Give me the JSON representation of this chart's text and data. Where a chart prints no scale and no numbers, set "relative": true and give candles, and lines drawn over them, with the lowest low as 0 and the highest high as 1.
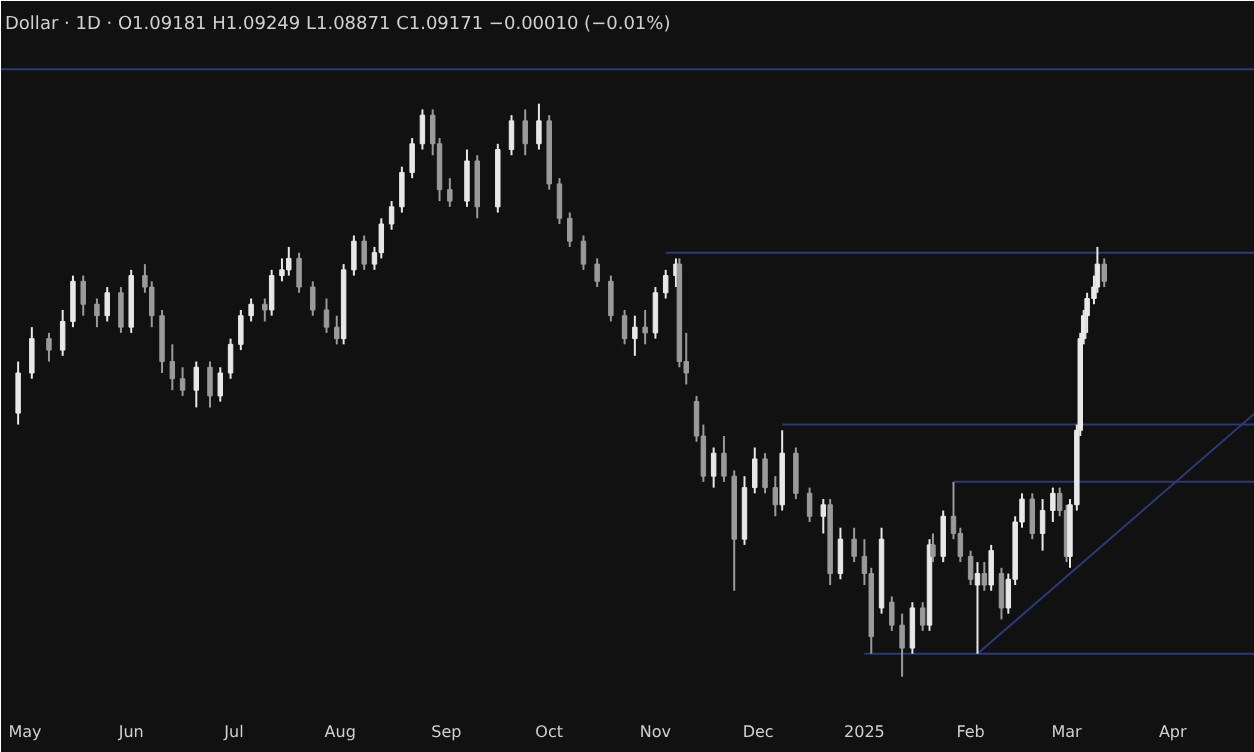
{
  "chart_data": {
    "type": "candlestick",
    "title": "Dollar · 1D · O1.09181 H1.09249 L1.08871 C1.09171 −0.00010 (−0.01%)",
    "relative": true,
    "x": [
      "2024-04-29",
      "2024-05-03",
      "2024-05-08",
      "2024-05-12",
      "2024-05-15",
      "2024-05-18",
      "2024-05-22",
      "2024-05-25",
      "2024-05-29",
      "2024-06-01",
      "2024-06-05",
      "2024-06-07",
      "2024-06-10",
      "2024-06-13",
      "2024-06-16",
      "2024-06-20",
      "2024-06-24",
      "2024-06-27",
      "2024-06-30",
      "2024-07-03",
      "2024-07-06",
      "2024-07-10",
      "2024-07-12",
      "2024-07-15",
      "2024-07-17",
      "2024-07-20",
      "2024-07-24",
      "2024-07-28",
      "2024-07-31",
      "2024-08-02",
      "2024-08-05",
      "2024-08-08",
      "2024-08-11",
      "2024-08-13",
      "2024-08-16",
      "2024-08-19",
      "2024-08-22",
      "2024-08-25",
      "2024-08-28",
      "2024-08-30",
      "2024-09-02",
      "2024-09-07",
      "2024-09-10",
      "2024-09-16",
      "2024-09-20",
      "2024-09-24",
      "2024-09-28",
      "2024-10-01",
      "2024-10-04",
      "2024-10-07",
      "2024-10-11",
      "2024-10-15",
      "2024-10-19",
      "2024-10-23",
      "2024-10-26",
      "2024-10-29",
      "2024-11-01",
      "2024-11-04",
      "2024-11-07",
      "2024-11-08",
      "2024-11-10",
      "2024-11-13",
      "2024-11-15",
      "2024-11-18",
      "2024-11-21",
      "2024-11-24",
      "2024-11-27",
      "2024-11-30",
      "2024-12-03",
      "2024-12-06",
      "2024-12-08",
      "2024-12-12",
      "2024-12-16",
      "2024-12-20",
      "2024-12-22",
      "2024-12-25",
      "2024-12-29",
      "2025-01-01",
      "2025-01-03",
      "2025-01-06",
      "2025-01-09",
      "2025-01-12",
      "2025-01-15",
      "2025-01-18",
      "2025-01-20",
      "2025-01-21",
      "2025-01-24",
      "2025-01-27",
      "2025-01-29",
      "2025-02-01",
      "2025-02-03",
      "2025-02-05",
      "2025-02-07",
      "2025-02-10",
      "2025-02-12",
      "2025-02-14",
      "2025-02-16",
      "2025-02-19",
      "2025-02-22",
      "2025-02-25",
      "2025-02-27",
      "2025-03-01",
      "2025-03-02",
      "2025-03-04",
      "2025-03-05",
      "2025-03-06",
      "2025-03-07",
      "2025-03-09",
      "2025-03-10",
      "2025-03-12"
    ],
    "ohlc": [
      [
        0.46,
        0.55,
        0.44,
        0.53
      ],
      [
        0.53,
        0.61,
        0.52,
        0.59
      ],
      [
        0.59,
        0.6,
        0.55,
        0.57
      ],
      [
        0.57,
        0.64,
        0.56,
        0.62
      ],
      [
        0.62,
        0.7,
        0.61,
        0.69
      ],
      [
        0.69,
        0.7,
        0.63,
        0.65
      ],
      [
        0.65,
        0.66,
        0.61,
        0.63
      ],
      [
        0.63,
        0.68,
        0.62,
        0.67
      ],
      [
        0.67,
        0.68,
        0.6,
        0.61
      ],
      [
        0.61,
        0.71,
        0.6,
        0.7
      ],
      [
        0.7,
        0.72,
        0.67,
        0.68
      ],
      [
        0.68,
        0.69,
        0.61,
        0.63
      ],
      [
        0.63,
        0.64,
        0.53,
        0.55
      ],
      [
        0.55,
        0.58,
        0.5,
        0.52
      ],
      [
        0.52,
        0.54,
        0.49,
        0.5
      ],
      [
        0.5,
        0.55,
        0.47,
        0.54
      ],
      [
        0.54,
        0.55,
        0.47,
        0.49
      ],
      [
        0.49,
        0.54,
        0.48,
        0.53
      ],
      [
        0.53,
        0.59,
        0.52,
        0.58
      ],
      [
        0.58,
        0.64,
        0.57,
        0.63
      ],
      [
        0.63,
        0.66,
        0.62,
        0.65
      ],
      [
        0.65,
        0.66,
        0.62,
        0.64
      ],
      [
        0.64,
        0.71,
        0.63,
        0.7
      ],
      [
        0.7,
        0.73,
        0.69,
        0.71
      ],
      [
        0.71,
        0.75,
        0.7,
        0.73
      ],
      [
        0.73,
        0.74,
        0.67,
        0.68
      ],
      [
        0.68,
        0.69,
        0.63,
        0.64
      ],
      [
        0.64,
        0.66,
        0.6,
        0.61
      ],
      [
        0.61,
        0.63,
        0.58,
        0.59
      ],
      [
        0.59,
        0.72,
        0.58,
        0.71
      ],
      [
        0.71,
        0.77,
        0.7,
        0.76
      ],
      [
        0.76,
        0.77,
        0.71,
        0.72
      ],
      [
        0.72,
        0.75,
        0.71,
        0.74
      ],
      [
        0.74,
        0.8,
        0.73,
        0.79
      ],
      [
        0.79,
        0.83,
        0.78,
        0.82
      ],
      [
        0.82,
        0.89,
        0.81,
        0.88
      ],
      [
        0.88,
        0.94,
        0.87,
        0.93
      ],
      [
        0.93,
        0.99,
        0.92,
        0.98
      ],
      [
        0.98,
        0.99,
        0.91,
        0.93
      ],
      [
        0.93,
        0.94,
        0.83,
        0.85
      ],
      [
        0.85,
        0.87,
        0.82,
        0.83
      ],
      [
        0.83,
        0.92,
        0.82,
        0.9
      ],
      [
        0.9,
        0.91,
        0.8,
        0.82
      ],
      [
        0.82,
        0.93,
        0.81,
        0.92
      ],
      [
        0.92,
        0.98,
        0.91,
        0.97
      ],
      [
        0.97,
        0.99,
        0.91,
        0.93
      ],
      [
        0.93,
        1.0,
        0.92,
        0.97
      ],
      [
        0.97,
        0.98,
        0.85,
        0.86
      ],
      [
        0.86,
        0.87,
        0.79,
        0.8
      ],
      [
        0.8,
        0.81,
        0.75,
        0.76
      ],
      [
        0.76,
        0.77,
        0.71,
        0.72
      ],
      [
        0.72,
        0.73,
        0.68,
        0.69
      ],
      [
        0.69,
        0.7,
        0.62,
        0.63
      ],
      [
        0.63,
        0.64,
        0.58,
        0.59
      ],
      [
        0.59,
        0.63,
        0.56,
        0.61
      ],
      [
        0.61,
        0.64,
        0.58,
        0.6
      ],
      [
        0.6,
        0.68,
        0.59,
        0.67
      ],
      [
        0.67,
        0.71,
        0.66,
        0.7
      ],
      [
        0.7,
        0.73,
        0.68,
        0.72
      ],
      [
        0.72,
        0.73,
        0.54,
        0.55
      ],
      [
        0.55,
        0.6,
        0.51,
        0.53
      ],
      [
        0.48,
        0.49,
        0.41,
        0.42
      ],
      [
        0.42,
        0.44,
        0.34,
        0.35
      ],
      [
        0.35,
        0.4,
        0.33,
        0.39
      ],
      [
        0.39,
        0.42,
        0.34,
        0.35
      ],
      [
        0.35,
        0.36,
        0.15,
        0.24
      ],
      [
        0.24,
        0.35,
        0.23,
        0.33
      ],
      [
        0.33,
        0.4,
        0.32,
        0.38
      ],
      [
        0.38,
        0.39,
        0.32,
        0.33
      ],
      [
        0.33,
        0.35,
        0.28,
        0.3
      ],
      [
        0.3,
        0.43,
        0.29,
        0.39
      ],
      [
        0.39,
        0.4,
        0.31,
        0.32
      ],
      [
        0.32,
        0.33,
        0.27,
        0.28
      ],
      [
        0.28,
        0.31,
        0.25,
        0.3
      ],
      [
        0.3,
        0.31,
        0.16,
        0.18
      ],
      [
        0.18,
        0.26,
        0.17,
        0.24
      ],
      [
        0.24,
        0.26,
        0.2,
        0.21
      ],
      [
        0.21,
        0.24,
        0.16,
        0.18
      ],
      [
        0.18,
        0.19,
        0.04,
        0.07
      ],
      [
        0.12,
        0.26,
        0.11,
        0.24
      ],
      [
        0.13,
        0.14,
        0.08,
        0.09
      ],
      [
        0.09,
        0.11,
        0.0,
        0.05
      ],
      [
        0.05,
        0.13,
        0.04,
        0.12
      ],
      [
        0.12,
        0.13,
        0.08,
        0.09
      ],
      [
        0.09,
        0.24,
        0.08,
        0.23
      ],
      [
        0.23,
        0.25,
        0.2,
        0.21
      ],
      [
        0.21,
        0.29,
        0.2,
        0.28
      ],
      [
        0.28,
        0.34,
        0.24,
        0.25
      ],
      [
        0.25,
        0.26,
        0.2,
        0.21
      ],
      [
        0.21,
        0.22,
        0.16,
        0.17
      ],
      [
        0.16,
        0.2,
        0.04,
        0.18
      ],
      [
        0.18,
        0.2,
        0.15,
        0.16
      ],
      [
        0.16,
        0.23,
        0.15,
        0.22
      ],
      [
        0.18,
        0.19,
        0.1,
        0.12
      ],
      [
        0.12,
        0.18,
        0.11,
        0.17
      ],
      [
        0.17,
        0.28,
        0.16,
        0.27
      ],
      [
        0.27,
        0.32,
        0.26,
        0.31
      ],
      [
        0.31,
        0.32,
        0.24,
        0.25
      ],
      [
        0.25,
        0.31,
        0.22,
        0.29
      ],
      [
        0.29,
        0.33,
        0.27,
        0.32
      ],
      [
        0.32,
        0.33,
        0.28,
        0.29
      ],
      [
        0.29,
        0.3,
        0.2,
        0.21
      ],
      [
        0.21,
        0.31,
        0.19,
        0.3
      ],
      [
        0.3,
        0.44,
        0.29,
        0.43
      ],
      [
        0.43,
        0.6,
        0.42,
        0.59
      ],
      [
        0.59,
        0.64,
        0.58,
        0.63
      ],
      [
        0.63,
        0.67,
        0.6,
        0.66
      ],
      [
        0.66,
        0.7,
        0.65,
        0.68
      ],
      [
        0.68,
        0.75,
        0.67,
        0.72
      ],
      [
        0.72,
        0.73,
        0.68,
        0.69
      ]
    ],
    "xlim": [
      "2024-04-24",
      "2025-04-25"
    ],
    "xticks": [
      {
        "value": "2024-05-01",
        "label": "May"
      },
      {
        "value": "2024-06-01",
        "label": "Jun"
      },
      {
        "value": "2024-07-01",
        "label": "Jul"
      },
      {
        "value": "2024-08-01",
        "label": "Aug"
      },
      {
        "value": "2024-09-01",
        "label": "Sep"
      },
      {
        "value": "2024-10-01",
        "label": "Oct"
      },
      {
        "value": "2024-11-01",
        "label": "Nov"
      },
      {
        "value": "2024-12-01",
        "label": "Dec"
      },
      {
        "value": "2025-01-01",
        "label": "2025"
      },
      {
        "value": "2025-02-01",
        "label": "Feb"
      },
      {
        "value": "2025-03-01",
        "label": "Mar"
      },
      {
        "value": "2025-04-01",
        "label": "Apr"
      }
    ],
    "ref_lines": [
      {
        "axis": "y",
        "value": 1.06,
        "color": "#2b3a78"
      }
    ],
    "series": [
      {
        "type": "line",
        "color": "#2b3a78",
        "x": [
          "2024-11-04",
          "2025-04-25"
        ],
        "values": [
          0.74,
          0.74
        ]
      },
      {
        "type": "line",
        "color": "#2b3a78",
        "x": [
          "2024-12-08",
          "2025-04-25"
        ],
        "values": [
          0.44,
          0.44
        ]
      },
      {
        "type": "line",
        "color": "#2b3a78",
        "x": [
          "2025-01-27",
          "2025-04-25"
        ],
        "values": [
          0.34,
          0.34
        ]
      },
      {
        "type": "line",
        "color": "#2b3a78",
        "x": [
          "2025-01-01",
          "2025-04-25"
        ],
        "values": [
          0.04,
          0.04
        ]
      },
      {
        "type": "line",
        "color": "#2b3a78",
        "x": [
          "2025-02-03",
          "2025-04-25"
        ],
        "values": [
          0.04,
          0.46
        ]
      }
    ],
    "grid": false
  }
}
